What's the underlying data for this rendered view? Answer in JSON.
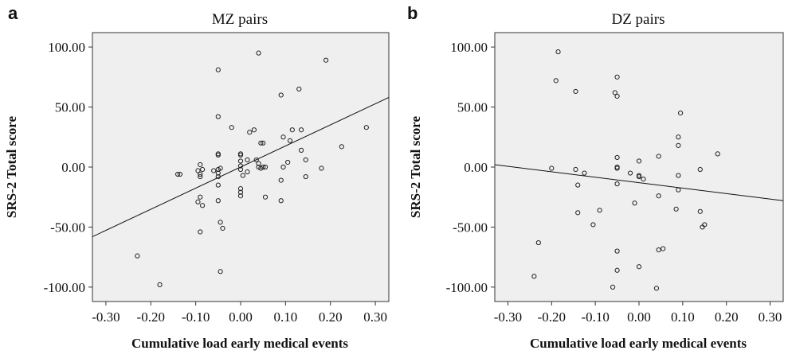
{
  "chart_data": [
    {
      "panel_label": "a",
      "type": "scatter",
      "title": "MZ pairs",
      "xlabel": "Cumulative load early medical events",
      "ylabel": "SRS-2 Total score",
      "xlim": [
        -0.33,
        0.33
      ],
      "ylim": [
        -112,
        112
      ],
      "xticks": [
        "-0.30",
        "-0.20",
        "-0.10",
        "0.00",
        "0.10",
        "0.20",
        "0.30"
      ],
      "yticks": [
        "100.00",
        "50.00",
        "0.00",
        "-50.00",
        "-100.00"
      ],
      "xtick_values": [
        -0.3,
        -0.2,
        -0.1,
        0.0,
        0.1,
        0.2,
        0.3
      ],
      "ytick_values": [
        100,
        50,
        0,
        -50,
        -100
      ],
      "fit_line": {
        "x": [
          -0.33,
          0.33
        ],
        "y": [
          -58,
          58
        ]
      },
      "points": [
        [
          -0.23,
          -74
        ],
        [
          -0.18,
          -98
        ],
        [
          -0.14,
          -6
        ],
        [
          -0.135,
          -6
        ],
        [
          -0.09,
          2
        ],
        [
          -0.095,
          -3
        ],
        [
          -0.09,
          -6
        ],
        [
          -0.085,
          -2
        ],
        [
          -0.09,
          -8
        ],
        [
          -0.09,
          -25
        ],
        [
          -0.095,
          -29
        ],
        [
          -0.085,
          -32
        ],
        [
          -0.09,
          -54
        ],
        [
          -0.06,
          -3
        ],
        [
          -0.05,
          81
        ],
        [
          -0.05,
          42
        ],
        [
          -0.05,
          11
        ],
        [
          -0.05,
          10
        ],
        [
          -0.05,
          -2
        ],
        [
          -0.05,
          -5
        ],
        [
          -0.045,
          -1
        ],
        [
          -0.05,
          -8
        ],
        [
          -0.05,
          -15
        ],
        [
          -0.05,
          -28
        ],
        [
          -0.045,
          -46
        ],
        [
          -0.04,
          -51
        ],
        [
          -0.045,
          -87
        ],
        [
          -0.02,
          33
        ],
        [
          0.0,
          11
        ],
        [
          0.0,
          10
        ],
        [
          0.0,
          5
        ],
        [
          0.0,
          1
        ],
        [
          0.0,
          -2
        ],
        [
          0.005,
          -7
        ],
        [
          0.0,
          -18
        ],
        [
          0.0,
          -21
        ],
        [
          0.0,
          -24
        ],
        [
          0.015,
          6
        ],
        [
          0.015,
          -4
        ],
        [
          0.02,
          29
        ],
        [
          0.03,
          31
        ],
        [
          0.035,
          6
        ],
        [
          0.04,
          95
        ],
        [
          0.04,
          3
        ],
        [
          0.04,
          0
        ],
        [
          0.045,
          20
        ],
        [
          0.05,
          20
        ],
        [
          0.045,
          -1
        ],
        [
          0.05,
          0
        ],
        [
          0.055,
          0
        ],
        [
          0.055,
          -25
        ],
        [
          0.09,
          60
        ],
        [
          0.095,
          25
        ],
        [
          0.095,
          0
        ],
        [
          0.09,
          -11
        ],
        [
          0.09,
          -28
        ],
        [
          0.105,
          4
        ],
        [
          0.11,
          22
        ],
        [
          0.115,
          31
        ],
        [
          0.13,
          65
        ],
        [
          0.135,
          31
        ],
        [
          0.135,
          14
        ],
        [
          0.145,
          6
        ],
        [
          0.145,
          -8
        ],
        [
          0.18,
          -1
        ],
        [
          0.19,
          89
        ],
        [
          0.225,
          17
        ],
        [
          0.28,
          33
        ]
      ]
    },
    {
      "panel_label": "b",
      "type": "scatter",
      "title": "DZ pairs",
      "xlabel": "Cumulative load early medical events",
      "ylabel": "SRS-2 Total score",
      "xlim": [
        -0.33,
        0.33
      ],
      "ylim": [
        -112,
        112
      ],
      "xticks": [
        "-0.30",
        "-0.20",
        "-0.10",
        "0.00",
        "0.10",
        "0.20",
        "0.30"
      ],
      "yticks": [
        "100.00",
        "50.00",
        "0.00",
        "-50.00",
        "-100.00"
      ],
      "xtick_values": [
        -0.3,
        -0.2,
        -0.1,
        0.0,
        0.1,
        0.2,
        0.3
      ],
      "ytick_values": [
        100,
        50,
        0,
        -50,
        -100
      ],
      "fit_line": {
        "x": [
          -0.33,
          0.33
        ],
        "y": [
          2,
          -28
        ]
      },
      "points": [
        [
          -0.24,
          -91
        ],
        [
          -0.23,
          -63
        ],
        [
          -0.2,
          -1
        ],
        [
          -0.19,
          72
        ],
        [
          -0.185,
          96
        ],
        [
          -0.145,
          63
        ],
        [
          -0.145,
          -2
        ],
        [
          -0.14,
          -15
        ],
        [
          -0.14,
          -38
        ],
        [
          -0.125,
          -5
        ],
        [
          -0.105,
          -48
        ],
        [
          -0.09,
          -36
        ],
        [
          -0.06,
          -100
        ],
        [
          -0.055,
          62
        ],
        [
          -0.05,
          75
        ],
        [
          -0.05,
          59
        ],
        [
          -0.05,
          8
        ],
        [
          -0.05,
          0
        ],
        [
          -0.05,
          -1
        ],
        [
          -0.05,
          -14
        ],
        [
          -0.05,
          -70
        ],
        [
          -0.05,
          -86
        ],
        [
          -0.02,
          -5
        ],
        [
          -0.01,
          -30
        ],
        [
          0.0,
          5
        ],
        [
          0.0,
          -7
        ],
        [
          0.0,
          -8
        ],
        [
          0.0,
          -83
        ],
        [
          0.01,
          -10
        ],
        [
          0.045,
          9
        ],
        [
          0.045,
          -24
        ],
        [
          0.045,
          -69
        ],
        [
          0.04,
          -101
        ],
        [
          0.055,
          -68
        ],
        [
          0.085,
          -35
        ],
        [
          0.09,
          18
        ],
        [
          0.09,
          25
        ],
        [
          0.09,
          -7
        ],
        [
          0.09,
          -19
        ],
        [
          0.095,
          45
        ],
        [
          0.14,
          -2
        ],
        [
          0.14,
          -37
        ],
        [
          0.145,
          -50
        ],
        [
          0.15,
          -48
        ],
        [
          0.18,
          11
        ]
      ]
    }
  ]
}
